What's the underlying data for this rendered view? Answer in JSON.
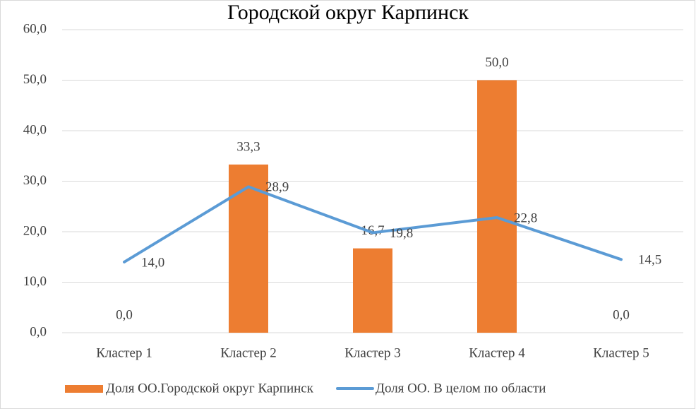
{
  "chart_data": {
    "type": "bar",
    "title": "Городской округ Карпинск",
    "categories": [
      "Кластер 1",
      "Кластер 2",
      "Кластер 3",
      "Кластер 4",
      "Кластер 5"
    ],
    "series": [
      {
        "name": "Доля ОО.Городской округ Карпинск",
        "type": "bar",
        "color": "#ed7d31",
        "values": [
          0,
          33.3,
          16.7,
          50,
          0
        ],
        "value_labels": [
          "0,0",
          "33,3",
          "16,7",
          "50,0",
          "0,0"
        ]
      },
      {
        "name": "Доля ОО. В целом по области",
        "type": "line",
        "color": "#5b9bd5",
        "values": [
          14,
          28.9,
          19.8,
          22.8,
          14.5
        ],
        "value_labels": [
          "14,0",
          "28,9",
          "19,8",
          "22,8",
          "14,5"
        ]
      }
    ],
    "ylim": [
      0,
      60
    ],
    "yticks": [
      {
        "value": 0,
        "label": "0,0"
      },
      {
        "value": 10,
        "label": "10,0"
      },
      {
        "value": 20,
        "label": "20,0"
      },
      {
        "value": 30,
        "label": "30,0"
      },
      {
        "value": 40,
        "label": "40,0"
      },
      {
        "value": 50,
        "label": "50,0"
      },
      {
        "value": 60,
        "label": "60,0"
      }
    ],
    "grid": true,
    "legend": "bottom"
  }
}
